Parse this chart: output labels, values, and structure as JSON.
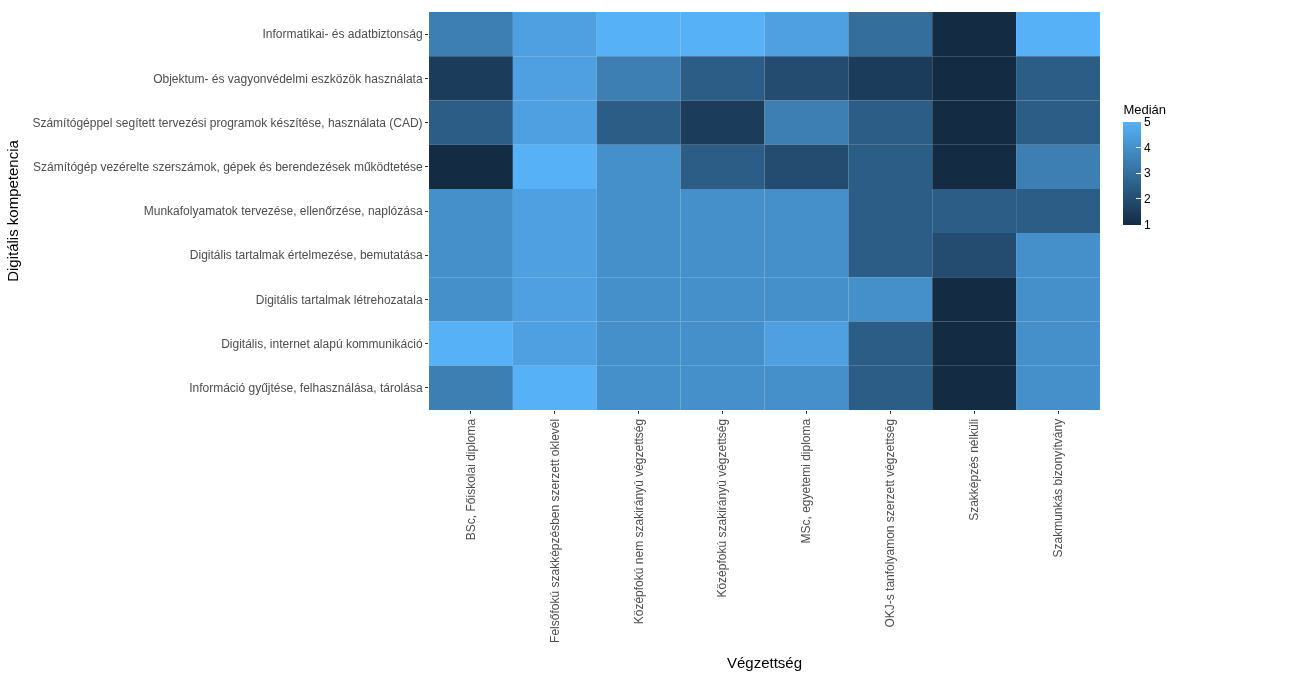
{
  "chart_data": {
    "type": "heatmap",
    "xlabel": "Végzettség",
    "ylabel": "Digitális kompetencia",
    "clabel": "Medián",
    "categories": [
      "BSc, Főiskolai diploma",
      "Felsőfokú szakképzésben szerzett oklevél",
      "Középfokú nem szakirányú végzettség",
      "Középfokú szakirányú végzettség",
      "MSc, egyetemi diploma",
      "OKJ-s tanfolyamon szerzett végzettség",
      "Szakképzés nélküli",
      "Szakmunkás bizonyítvány"
    ],
    "y_categories": [
      "Informatikai- és adatbiztonság",
      "Objektum- és vagyonvédelmi eszközök használata",
      "Számítógéppel segített tervezési programok készítése, használata (CAD)",
      "Számítógép vezérelte szerszámok, gépek és berendezések működtetése",
      "Munkafolyamatok tervezése, ellenőrzése, naplózása",
      "Digitális tartalmak értelmezése, bemutatása",
      "Digitális tartalmak létrehozatala",
      "Digitális, internet alapú kommunikáció",
      "Információ gyűjtése, felhasználása, tárolása"
    ],
    "cells": [
      [
        3.5,
        4.5,
        5,
        5,
        4.5,
        3,
        1,
        5
      ],
      [
        1.5,
        4.5,
        3.5,
        2.5,
        2,
        1.5,
        1,
        2.5
      ],
      [
        2.5,
        4.5,
        2.5,
        1.5,
        3.5,
        2.5,
        1,
        2.5
      ],
      [
        1,
        5,
        4,
        2.5,
        2,
        2.5,
        1,
        3.5
      ],
      [
        4,
        4.5,
        4,
        4,
        4,
        2.5,
        2.5,
        2.5
      ],
      [
        4,
        4.5,
        4,
        4,
        4,
        2.5,
        2,
        4
      ],
      [
        4,
        4.5,
        4,
        4,
        4,
        4,
        1,
        4
      ],
      [
        5,
        4.5,
        4,
        4,
        4.5,
        2.5,
        1,
        4
      ],
      [
        3.5,
        5,
        4,
        4,
        4,
        2.5,
        1,
        4
      ]
    ],
    "clim": [
      1,
      5
    ],
    "cticks": [
      1,
      2,
      3,
      4,
      5
    ]
  }
}
